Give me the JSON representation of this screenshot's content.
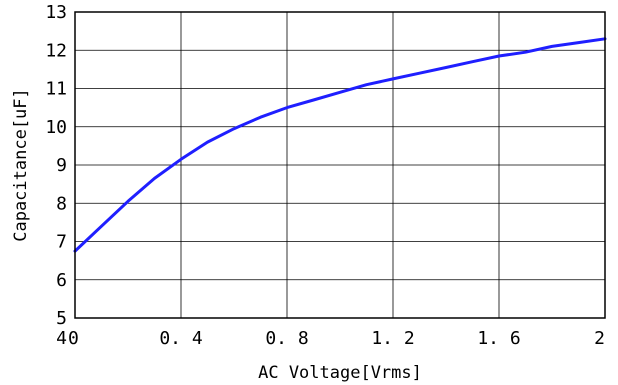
{
  "chart_data": {
    "type": "line",
    "title": "",
    "xlabel": "AC Voltage[Vrms]",
    "ylabel": "Capacitance[uF]",
    "xlim": [
      0,
      2
    ],
    "ylim": [
      5,
      13
    ],
    "grid": true,
    "x_ticks": [
      "0",
      "0.4",
      "0.8",
      "1.2",
      "1.6",
      "2"
    ],
    "y_ticks": [
      "4",
      "5",
      "6",
      "7",
      "8",
      "9",
      "10",
      "11",
      "12",
      "13"
    ],
    "series": [
      {
        "color": "#1f1fff",
        "x": [
          0.0,
          0.1,
          0.2,
          0.3,
          0.4,
          0.5,
          0.6,
          0.7,
          0.8,
          0.9,
          1.0,
          1.1,
          1.2,
          1.3,
          1.4,
          1.5,
          1.6,
          1.7,
          1.8,
          1.9,
          2.0
        ],
        "y": [
          6.75,
          7.4,
          8.05,
          8.65,
          9.15,
          9.6,
          9.95,
          10.25,
          10.5,
          10.7,
          10.9,
          11.1,
          11.25,
          11.4,
          11.55,
          11.7,
          11.85,
          11.95,
          12.1,
          12.2,
          12.3
        ]
      }
    ]
  }
}
